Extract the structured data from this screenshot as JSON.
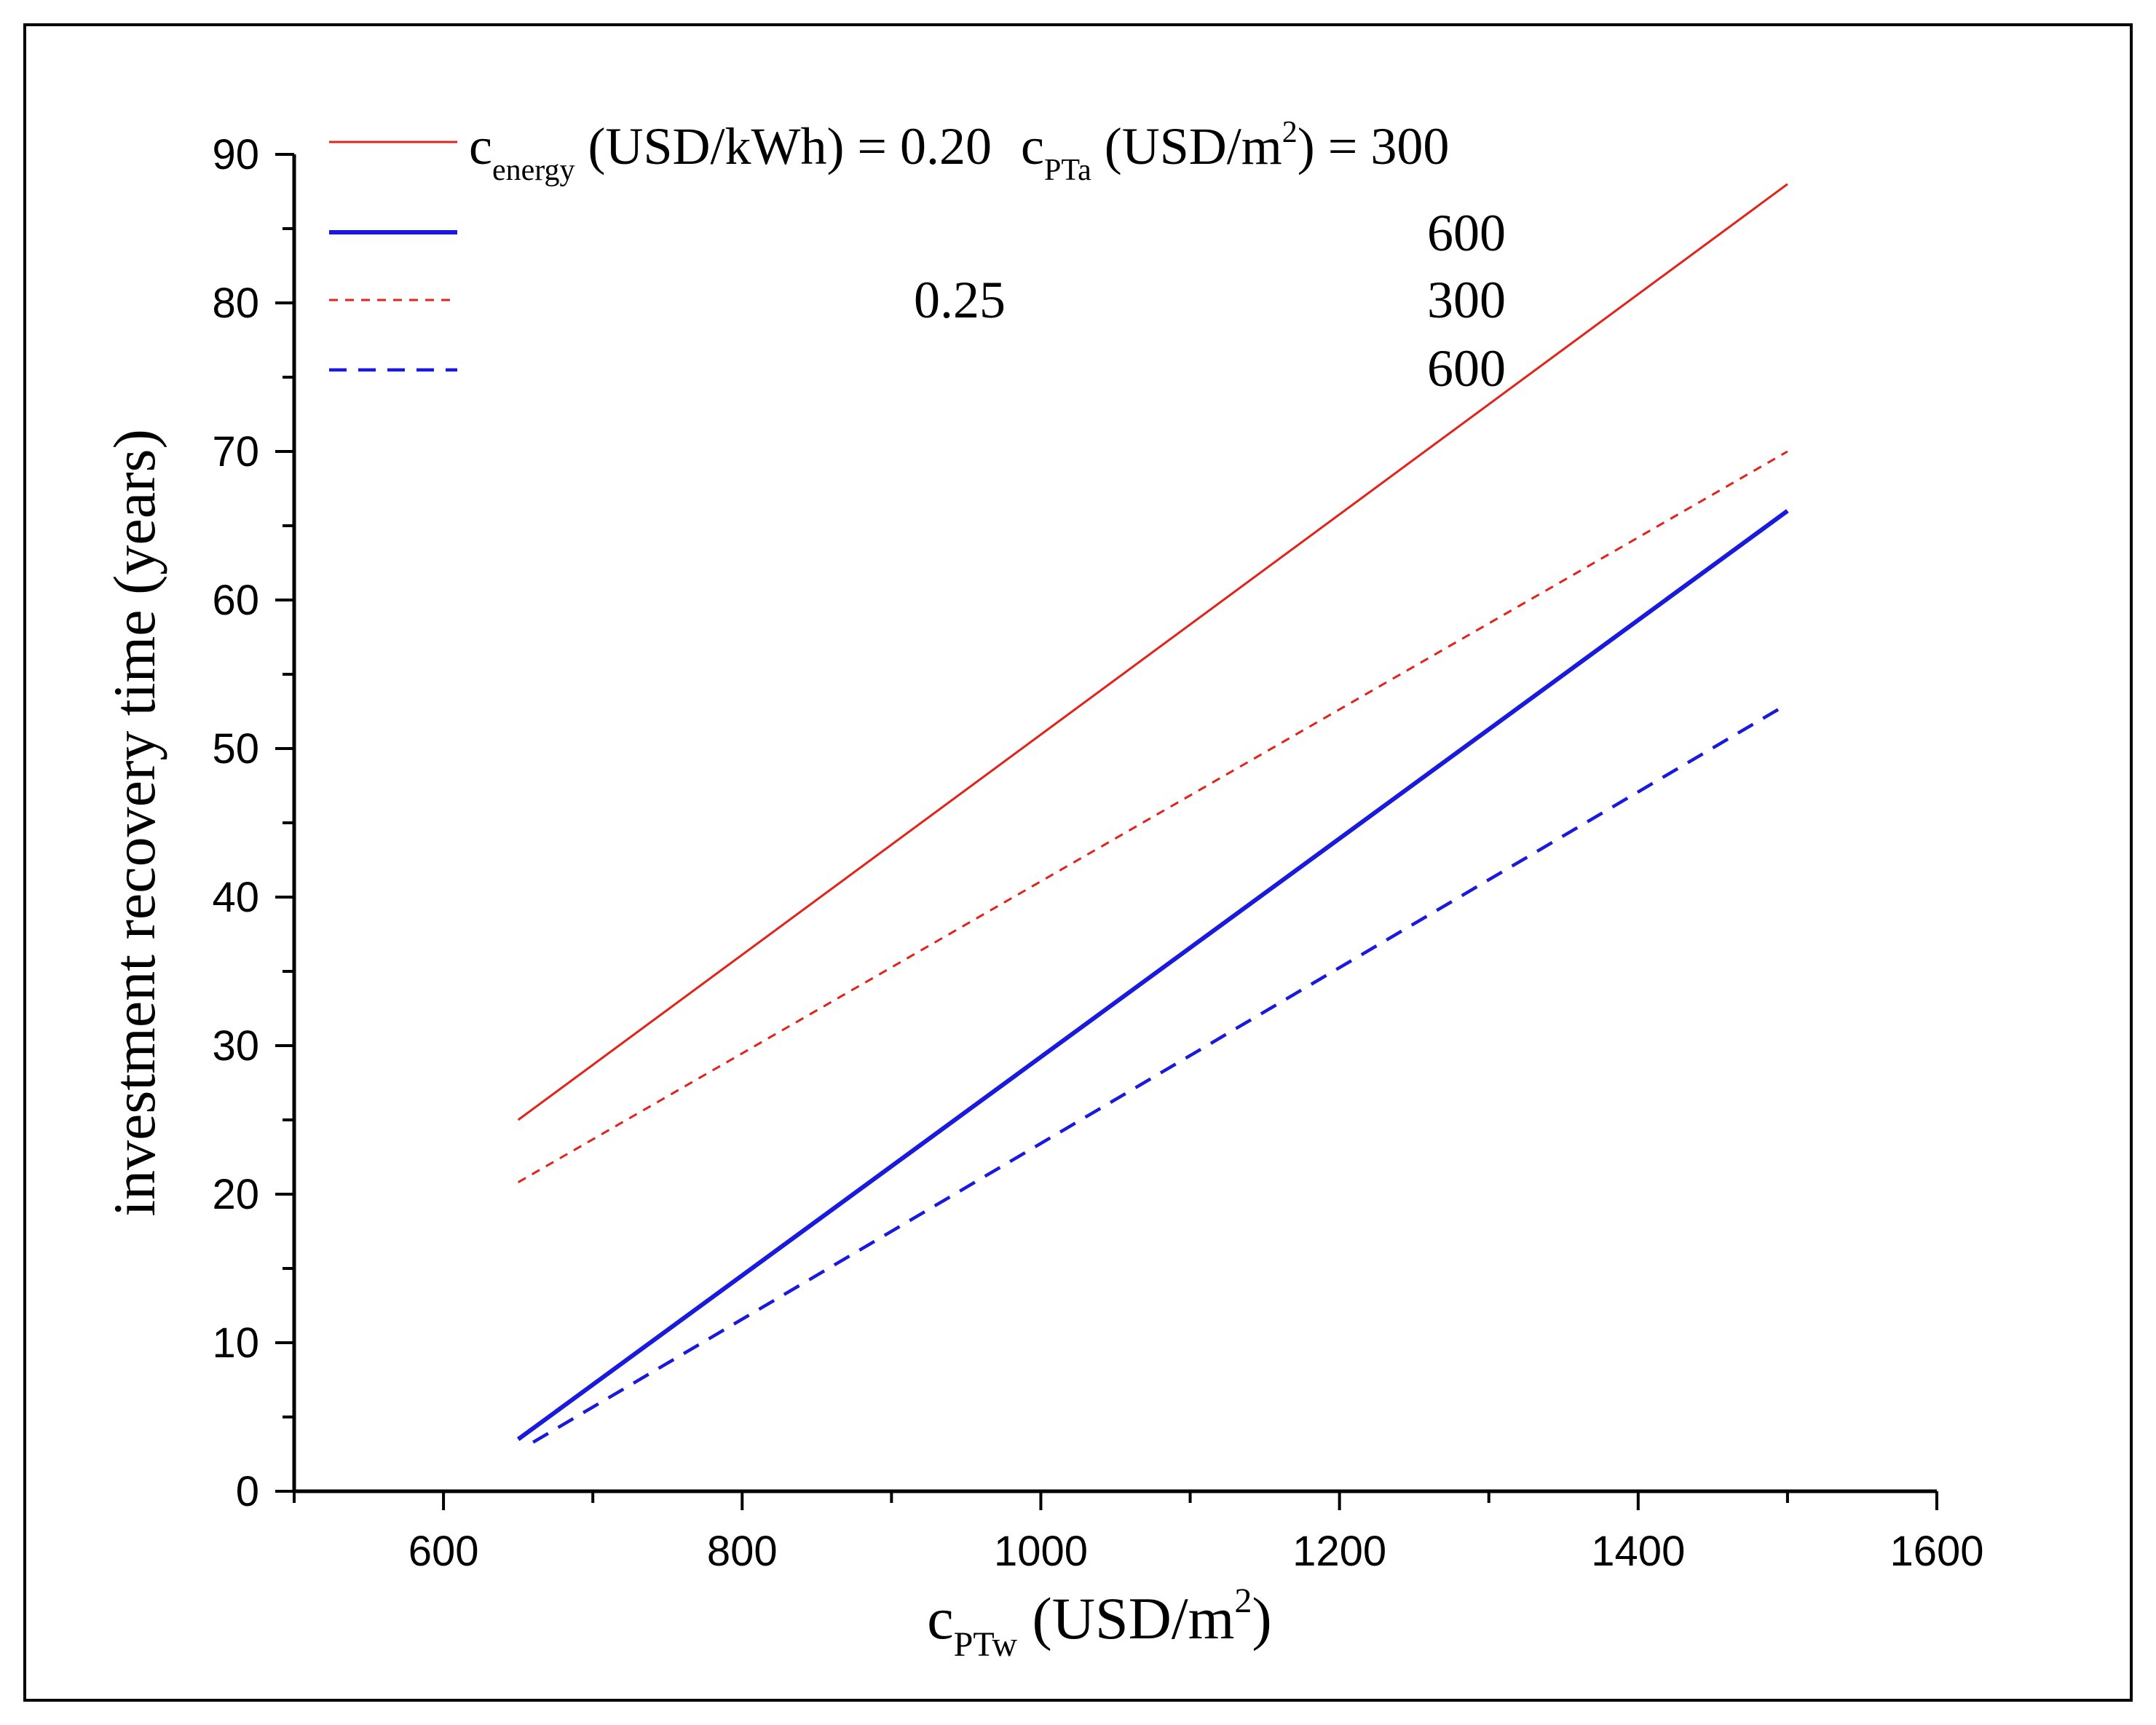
{
  "colors": {
    "red": "#e2231a",
    "blue": "#1a1adc",
    "axis": "#000000"
  },
  "legend": {
    "label_energy_prefix": "c",
    "label_energy_sub": "energy",
    "label_energy_suffix": " (USD/kWh) = ",
    "label_pta_prefix": "c",
    "label_pta_sub": "PTa",
    "label_pta_mid": " (USD/m",
    "label_pta_sup": "2",
    "label_pta_suffix": ") = ",
    "rows": [
      {
        "energy": "0.20",
        "pta": "300"
      },
      {
        "energy": "",
        "pta": "600"
      },
      {
        "energy": "0.25",
        "pta": "300"
      },
      {
        "energy": "",
        "pta": "600"
      }
    ]
  },
  "chart_data": {
    "type": "line",
    "xlabel_prefix": "c",
    "xlabel_sub": "PTw",
    "xlabel_mid": " (USD/m",
    "xlabel_sup": "2",
    "xlabel_suffix": ")",
    "ylabel": "investment recovery time (years)",
    "xlim": [
      500,
      1600
    ],
    "ylim": [
      0,
      90
    ],
    "x_ticks": [
      600,
      800,
      1000,
      1200,
      1400,
      1600
    ],
    "y_ticks": [
      0,
      10,
      20,
      30,
      40,
      50,
      60,
      70,
      80,
      90
    ],
    "grid": false,
    "legend_position": "top-left",
    "series": [
      {
        "c_energy": 0.2,
        "c_PTa": 300,
        "color": "red",
        "style": "solid-thin",
        "x": [
          650,
          1500
        ],
        "y": [
          25,
          88
        ]
      },
      {
        "c_energy": 0.2,
        "c_PTa": 600,
        "color": "blue",
        "style": "solid-thick",
        "x": [
          650,
          1500
        ],
        "y": [
          3.5,
          66
        ]
      },
      {
        "c_energy": 0.25,
        "c_PTa": 300,
        "color": "red",
        "style": "dotted-thin",
        "x": [
          650,
          1500
        ],
        "y": [
          20.8,
          70
        ]
      },
      {
        "c_energy": 0.25,
        "c_PTa": 600,
        "color": "blue",
        "style": "dashed-thick",
        "x": [
          660,
          1500
        ],
        "y": [
          3.3,
          53
        ]
      }
    ]
  }
}
